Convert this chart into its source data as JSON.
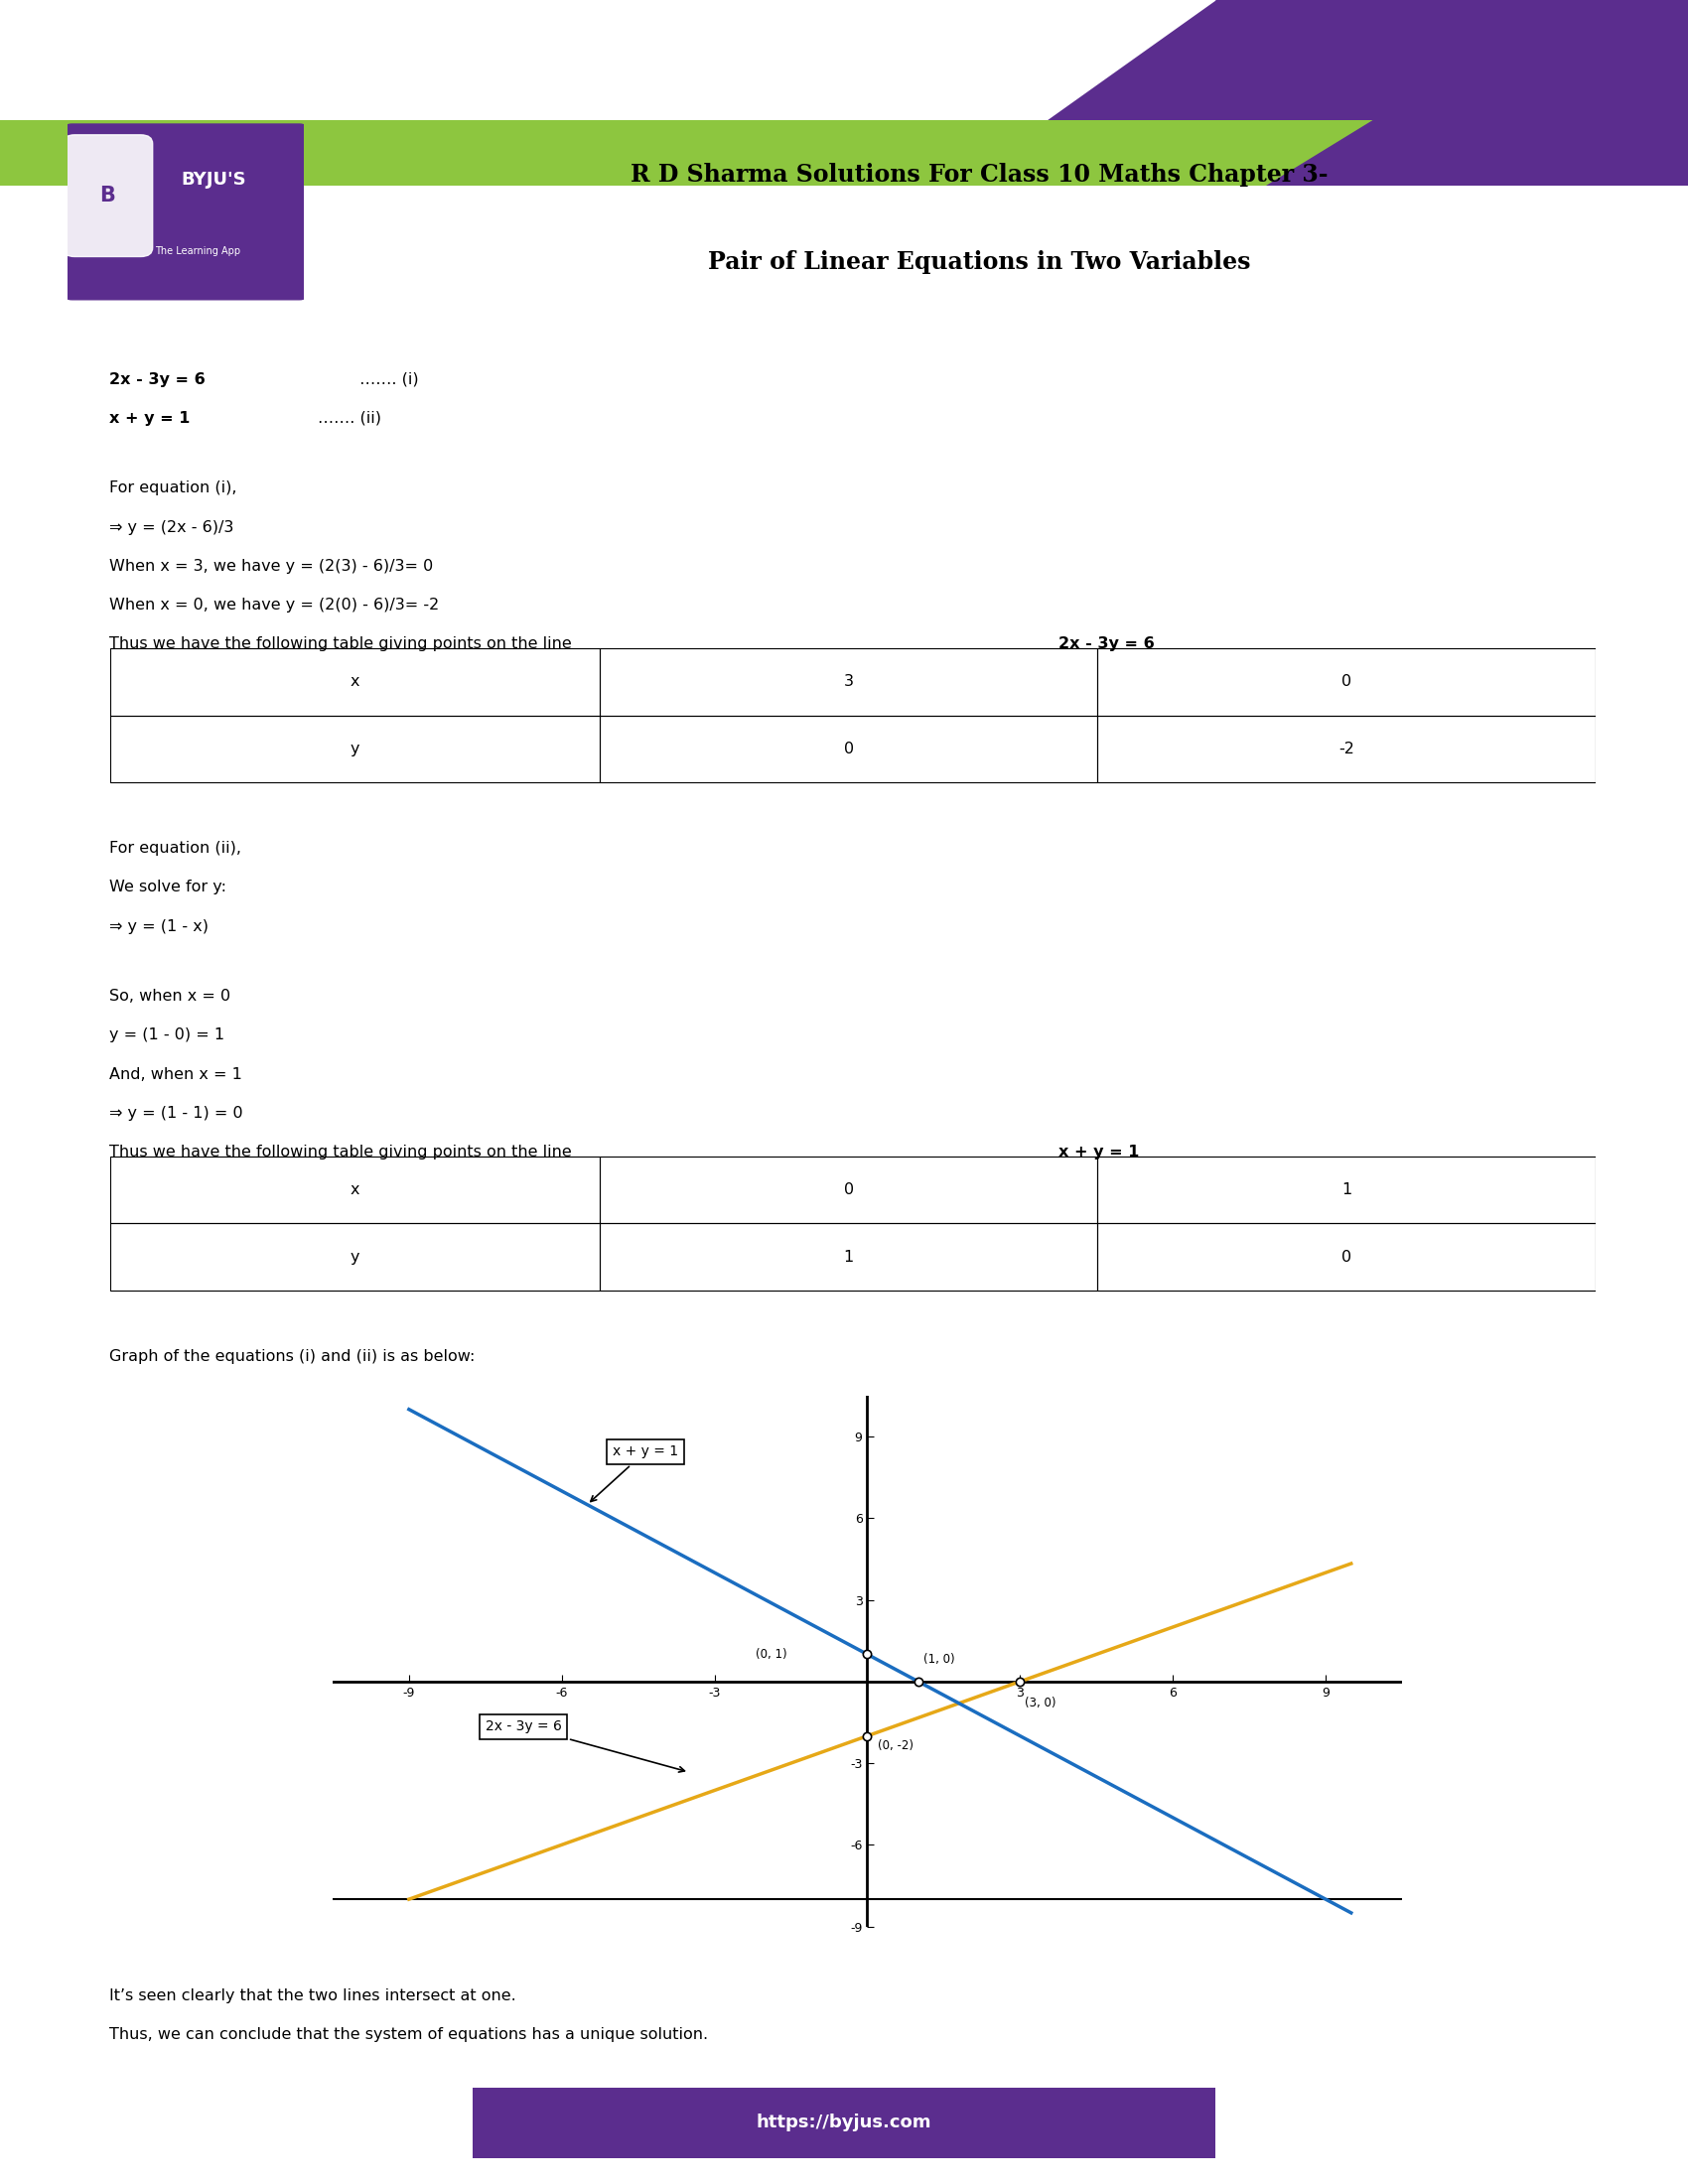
{
  "title_line1": "R D Sharma Solutions For Class 10 Maths Chapter 3-",
  "title_line2": "Pair of Linear Equations in Two Variables",
  "header_purple": "#5b2d8e",
  "header_green": "#8dc63f",
  "byju_purple": "#5b2d8e",
  "background": "#ffffff",
  "footer_url": "https://byjus.com",
  "footer_bg": "#5b2d8e",
  "line1_color": "#e6a817",
  "line2_color": "#1a6dc0",
  "axis_ticks": [
    -9,
    -6,
    -3,
    3,
    6,
    9
  ],
  "points_eq1": [
    [
      3,
      0
    ],
    [
      0,
      -2
    ]
  ],
  "points_eq2": [
    [
      0,
      1
    ],
    [
      1,
      0
    ]
  ],
  "label_eq1": "2x - 3y = 6",
  "label_eq2": "x + y = 1",
  "graph_caption": "Graph of the equations (i) and (ii) is as below:",
  "conclusion1": "It’s seen clearly that the two lines intersect at one.",
  "conclusion2": "Thus, we can conclude that the system of equations has a unique solution.",
  "table1_headers": [
    "x",
    "3",
    "0"
  ],
  "table1_row2": [
    "y",
    "0",
    "-2"
  ],
  "table2_headers": [
    "x",
    "0",
    "1"
  ],
  "table2_row2": [
    "y",
    "1",
    "0"
  ]
}
